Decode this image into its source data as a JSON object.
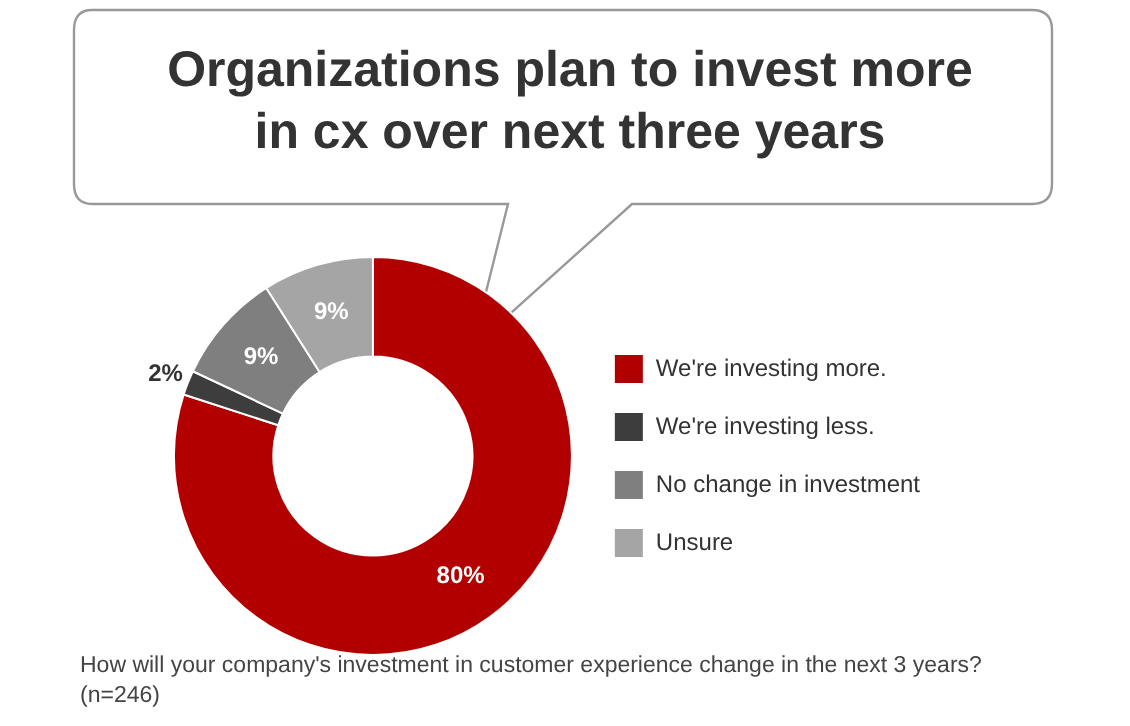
{
  "chart_data": {
    "type": "donut",
    "title": "Organizations plan to invest more in cx over next three years",
    "categories": [
      "We're investing more.",
      "We're investing less.",
      "No change in investment",
      "Unsure"
    ],
    "values": [
      80,
      2,
      9,
      9
    ],
    "colors": [
      "#b20000",
      "#3d3d3d",
      "#7f7f7f",
      "#a5a5a5"
    ],
    "value_labels": [
      "80%",
      "2%",
      "9%",
      "9%"
    ],
    "legend": "right",
    "annotations": [
      "How will your company's investment in customer experience change in the next 3 years?",
      "(n=246)"
    ]
  }
}
